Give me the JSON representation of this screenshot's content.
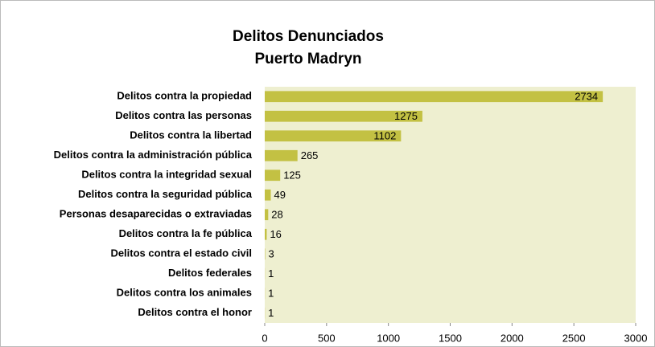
{
  "chart_data": {
    "type": "barh",
    "title": "Delitos Denunciados",
    "subtitle": "Puerto Madryn",
    "categories": [
      "Delitos contra la propiedad",
      "Delitos contra las personas",
      "Delitos contra la libertad",
      "Delitos contra la administración pública",
      "Delitos contra la integridad sexual",
      "Delitos contra la seguridad pública",
      "Personas desaparecidas o extraviadas",
      "Delitos contra la fe pública",
      "Delitos contra el estado civil",
      "Delitos federales",
      "Delitos contra los animales",
      "Delitos contra el honor"
    ],
    "values": [
      2734,
      1275,
      1102,
      265,
      125,
      49,
      28,
      16,
      3,
      1,
      1,
      1
    ],
    "color": "#c3c143",
    "plot_background": "#eeefd0",
    "xlim": [
      0,
      3000
    ],
    "xticks": [
      0,
      500,
      1000,
      1500,
      2000,
      2500,
      3000
    ]
  }
}
